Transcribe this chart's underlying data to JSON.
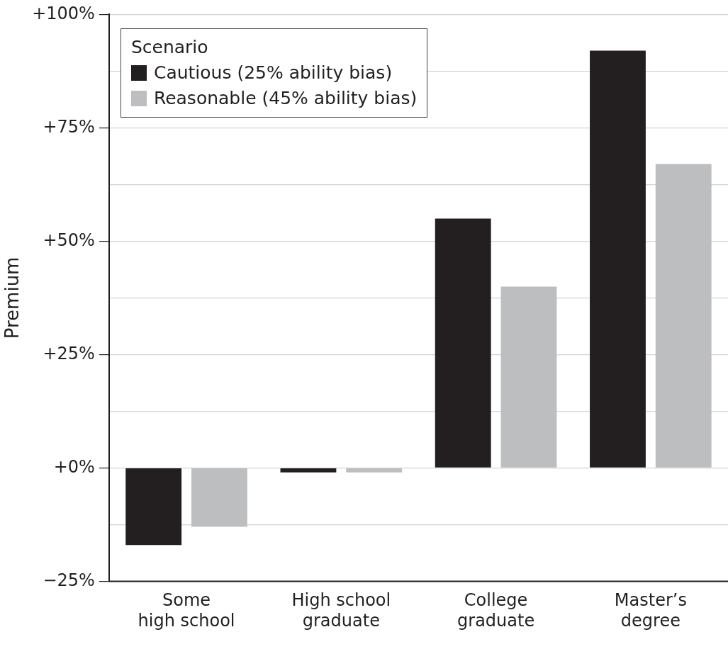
{
  "chart_data": {
    "type": "bar",
    "ylabel": "Premium",
    "legend_title": "Scenario",
    "categories": [
      "Some\nhigh school",
      "High school\ngraduate",
      "College\ngraduate",
      "Master’s\ndegree"
    ],
    "series": [
      {
        "name": "Cautious (25% ability bias)",
        "color": "#231f20",
        "values": [
          -17,
          -1,
          55,
          92
        ]
      },
      {
        "name": "Reasonable (45% ability bias)",
        "color": "#bcbec0",
        "values": [
          -13,
          -1,
          40,
          67
        ]
      }
    ],
    "ylim": [
      -25,
      100
    ],
    "yticks": [
      {
        "value": -25,
        "label": "−25%"
      },
      {
        "value": -12.5,
        "label": null
      },
      {
        "value": 0,
        "label": "+0%"
      },
      {
        "value": 12.5,
        "label": null
      },
      {
        "value": 25,
        "label": "+25%"
      },
      {
        "value": 37.5,
        "label": null
      },
      {
        "value": 50,
        "label": "+50%"
      },
      {
        "value": 62.5,
        "label": null
      },
      {
        "value": 75,
        "label": "+75%"
      },
      {
        "value": 87.5,
        "label": null
      },
      {
        "value": 100,
        "label": "+100%"
      }
    ],
    "grid": "y",
    "legend": "top left"
  }
}
